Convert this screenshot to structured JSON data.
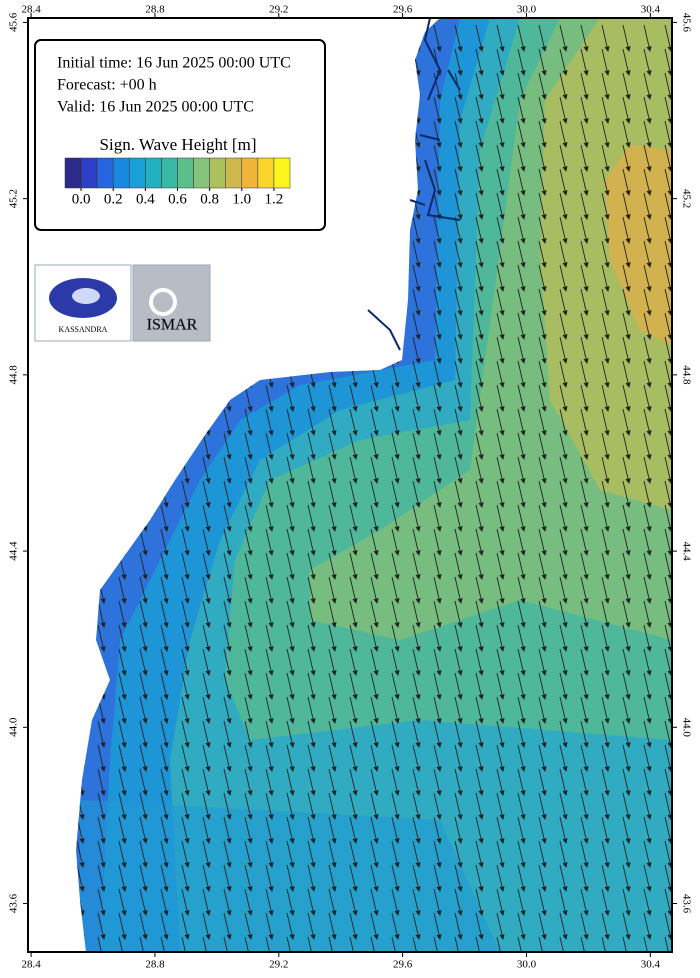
{
  "info": {
    "initial_time": "Initial time: 16 Jun 2025 00:00 UTC",
    "forecast": "Forecast: +00 h",
    "valid": "Valid: 16 Jun 2025 00:00 UTC"
  },
  "colorbar": {
    "title": "Sign. Wave Height [m]",
    "range": [
      -0.1,
      1.3
    ],
    "colors": [
      "#2c2a8a",
      "#2f40c8",
      "#2566e0",
      "#1a88e0",
      "#1aa0d8",
      "#22b0c0",
      "#3bb8a5",
      "#5bbf8c",
      "#86c279",
      "#adc05e",
      "#cfb94e",
      "#f0b43a",
      "#f9d42a",
      "#fbf51c"
    ],
    "ticks": [
      {
        "value": 0,
        "label": "0.0"
      },
      {
        "value": 0.2,
        "label": "0.2"
      },
      {
        "value": 0.4,
        "label": "0.4"
      },
      {
        "value": 0.6,
        "label": "0.6"
      },
      {
        "value": 0.8,
        "label": "0.8"
      },
      {
        "value": 1,
        "label": "1.0"
      },
      {
        "value": 1.2,
        "label": "1.2"
      }
    ]
  },
  "logos": {
    "left": "KASSANDRA",
    "right": "ISMAR"
  },
  "map": {
    "lonlim": [
      28.39,
      30.47
    ],
    "latlim": [
      43.49,
      45.61
    ],
    "lon_ticks": [
      28.4,
      28.8,
      29.2,
      29.6,
      {
        "value": 30,
        "label": "30.0"
      },
      30.4
    ],
    "lat_ticks": [
      43.6,
      {
        "value": 44,
        "label": "44.0"
      },
      44.4,
      44.8,
      45.2,
      45.6
    ]
  }
}
